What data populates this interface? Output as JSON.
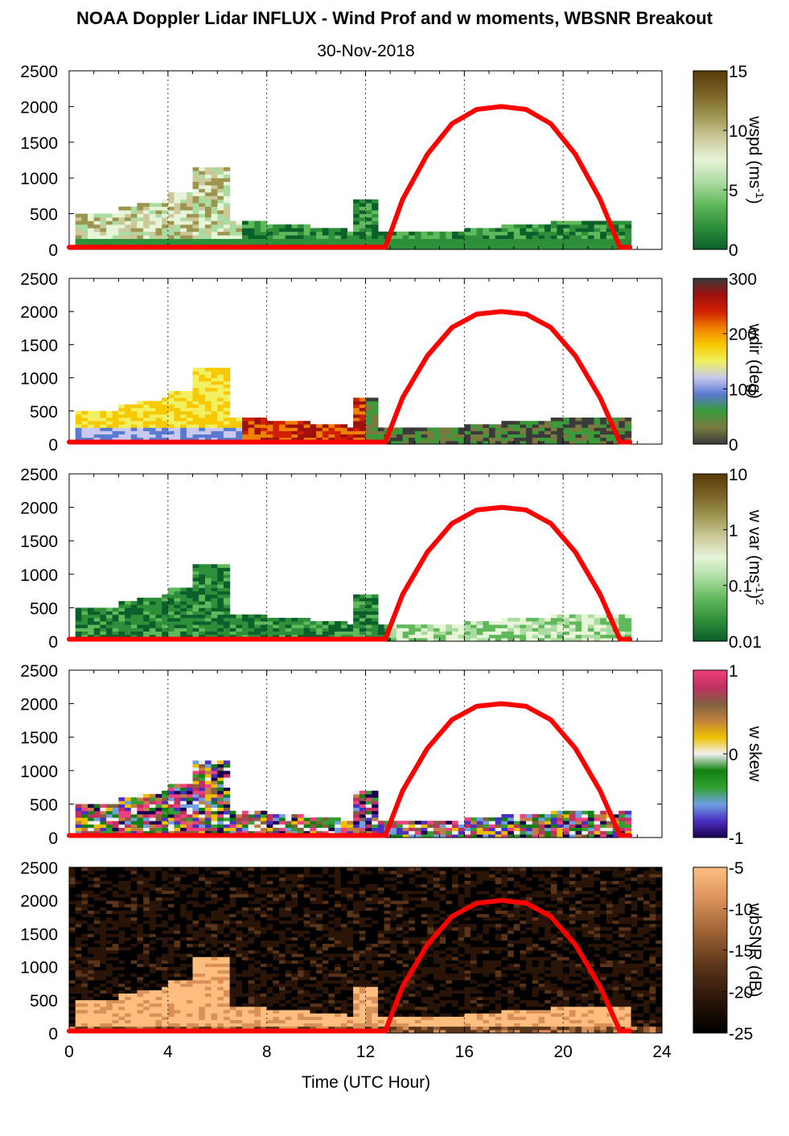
{
  "title": "NOAA Doppler Lidar INFLUX - Wind Prof and w moments, WBSNR Breakout",
  "date": "30-Nov-2018",
  "colors": {
    "sun_curve": "#ff0000",
    "grid": "#000000",
    "background": "#ffffff"
  },
  "chart_data": {
    "type": "heatmap",
    "xlabel": "Time (UTC Hour)",
    "xlim": [
      0,
      24
    ],
    "x_ticks": [
      "0",
      "4",
      "8",
      "12",
      "16",
      "20",
      "24"
    ],
    "ylim": [
      0,
      2500
    ],
    "y_ticks": [
      "0",
      "500",
      "1000",
      "1500",
      "2000",
      "2500"
    ],
    "grid": "vertical dotted at 4, 8, 12, 16, 20, 24",
    "overlay": {
      "name": "solar elevation curve",
      "color": "#ff0000",
      "x": [
        0,
        12.8,
        13.5,
        14.5,
        15.5,
        16.5,
        17.5,
        18.5,
        19.5,
        20.5,
        21.5,
        22.3,
        22.7
      ],
      "y": [
        30,
        30,
        700,
        1330,
        1760,
        1960,
        2000,
        1960,
        1760,
        1330,
        700,
        30,
        30
      ]
    },
    "panels": [
      {
        "id": "wspd",
        "colorbar_label": "wspd (ms-1)",
        "colorbar_label_main": "wspd (ms",
        "colorbar_label_sup": "-1",
        "colorbar_label_end": ")",
        "colorbar_ticks": [
          "15",
          "10",
          "5",
          "0"
        ],
        "colorbar_range": [
          0,
          15
        ],
        "colors": [
          "#0a5f2a",
          "#2e8f3a",
          "#5fb85a",
          "#aadba0",
          "#e6f4d8",
          "#cbc99a",
          "#9d9450",
          "#7a6226",
          "#5a3a08"
        ]
      },
      {
        "id": "wdir",
        "colorbar_label": "wdir (deg)",
        "colorbar_ticks": [
          "300",
          "200",
          "100",
          "0"
        ],
        "colorbar_range": [
          0,
          360
        ],
        "colors": [
          "#3a3a3a",
          "#7a7a40",
          "#3a9a3a",
          "#5a7ad0",
          "#c8c8f0",
          "#f0f060",
          "#f8c800",
          "#f08000",
          "#d02000",
          "#a01010",
          "#3a3a3a"
        ]
      },
      {
        "id": "wvar",
        "colorbar_label": "w var (ms-1)2",
        "colorbar_label_main": "w var (ms",
        "colorbar_label_sup": "-1",
        "colorbar_label_end": ")",
        "colorbar_label_sup2": "2",
        "colorbar_ticks": [
          "10",
          "1",
          "0.1",
          "0.01"
        ],
        "colorbar_range": [
          0.01,
          10
        ],
        "colors": [
          "#0a5f2a",
          "#2e8f3a",
          "#5fb85a",
          "#aadba0",
          "#e6f4d8",
          "#cbc99a",
          "#9d9450",
          "#7a6226",
          "#5a3a08"
        ]
      },
      {
        "id": "wskew",
        "colorbar_label": "w skew",
        "colorbar_ticks": [
          "1",
          "0",
          "-1"
        ],
        "colorbar_range": [
          -1,
          1
        ],
        "colors": [
          "#1a0050",
          "#4a30c0",
          "#70a0e0",
          "#30a030",
          "#108010",
          "#f0f0f0",
          "#f0c000",
          "#c08040",
          "#806040",
          "#c03060",
          "#f04080"
        ]
      },
      {
        "id": "wbsnr",
        "colorbar_label": "wbSNR (dB)",
        "colorbar_ticks": [
          "-5",
          "-10",
          "-15",
          "-20",
          "-25"
        ],
        "colorbar_range": [
          -25,
          -5
        ],
        "colors": [
          "#000000",
          "#2a1408",
          "#5a3418",
          "#9a6034",
          "#d89058",
          "#ffbd80"
        ]
      }
    ]
  }
}
